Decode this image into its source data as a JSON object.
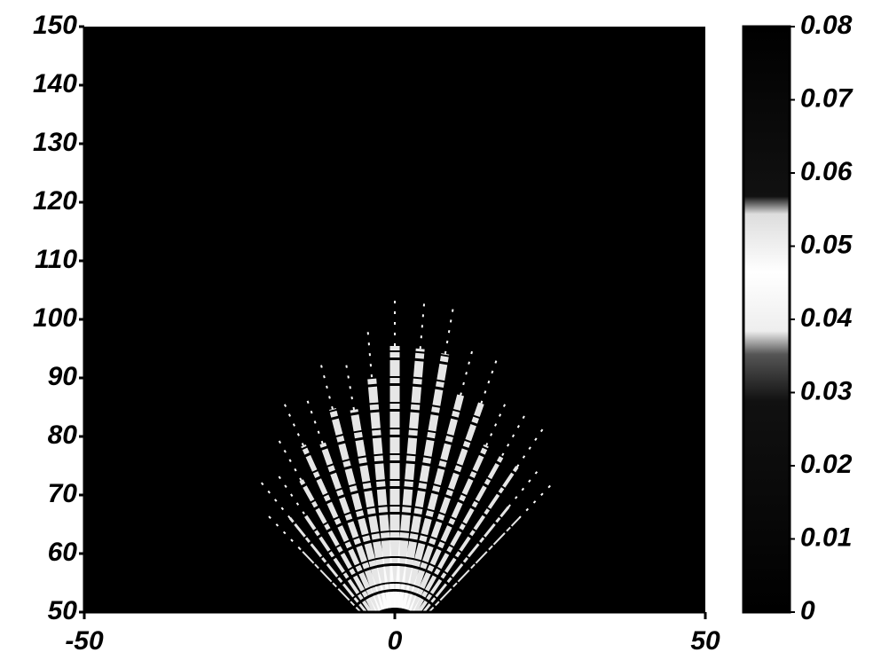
{
  "chart_data": {
    "type": "heatmap",
    "xlim": [
      -50,
      50
    ],
    "xticks": [
      -50,
      0,
      50
    ],
    "ylim": [
      50,
      150
    ],
    "yticks": [
      50,
      60,
      70,
      80,
      90,
      100,
      110,
      120,
      130,
      140,
      150
    ],
    "colorbar": {
      "lim": [
        0,
        0.08
      ],
      "ticks": [
        0,
        0.01,
        0.02,
        0.03,
        0.04,
        0.05,
        0.06,
        0.07,
        0.08
      ]
    }
  }
}
